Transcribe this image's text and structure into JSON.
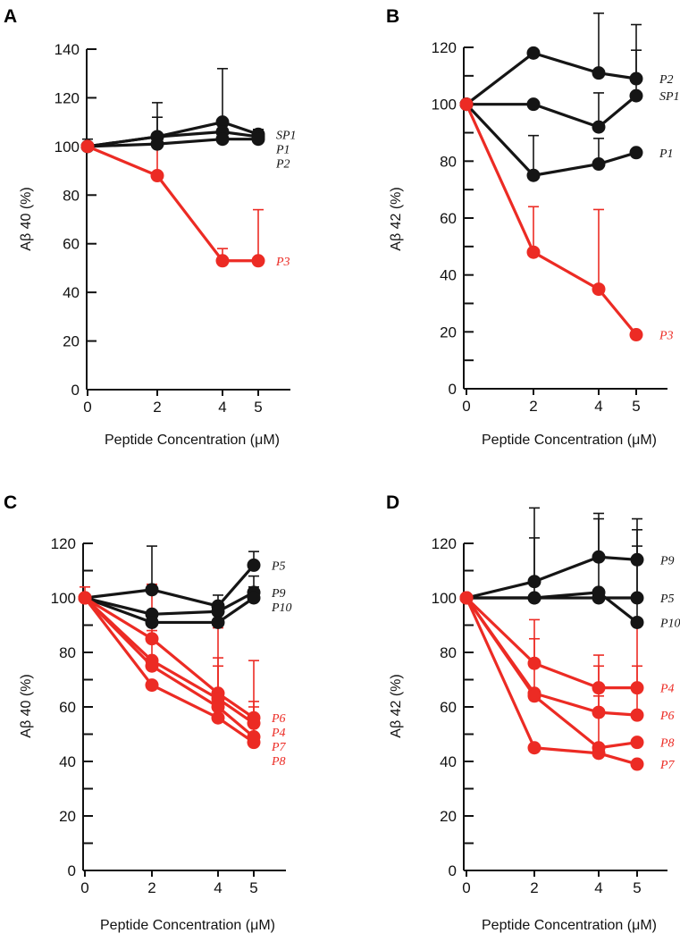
{
  "colors": {
    "black": "#151515",
    "red": "#ec2b24"
  },
  "chart_data": [
    {
      "type": "line",
      "panel": "A",
      "xlabel": "Peptide Concentration (μM)",
      "ylabel": "Aβ 40 (%)",
      "x": [
        0,
        2,
        4,
        5
      ],
      "xticks": [
        "0",
        "2",
        "4",
        "5"
      ],
      "ylim": [
        0,
        140
      ],
      "yticks": [
        "0",
        "20",
        "40",
        "60",
        "80",
        "100",
        "120",
        "140"
      ],
      "minor_step": 20,
      "series": [
        {
          "name": "SP1",
          "color": "black",
          "values": [
            100,
            104,
            110,
            105
          ],
          "err_upper": [
            103,
            118,
            132,
            107
          ]
        },
        {
          "name": "P1",
          "color": "black",
          "values": [
            100,
            104,
            106,
            104
          ],
          "err_upper": [
            null,
            112,
            null,
            null
          ]
        },
        {
          "name": "P2",
          "color": "black",
          "values": [
            100,
            101,
            103,
            103
          ],
          "err_upper": [
            null,
            null,
            null,
            null
          ]
        },
        {
          "name": "P3",
          "color": "red",
          "values": [
            100,
            88,
            53,
            53
          ],
          "err_upper": [
            null,
            105,
            58,
            74
          ]
        }
      ]
    },
    {
      "type": "line",
      "panel": "B",
      "xlabel": "Peptide Concentration (μM)",
      "ylabel": "Aβ 42 (%)",
      "x": [
        0,
        2,
        4,
        5
      ],
      "xticks": [
        "0",
        "2",
        "4",
        "5"
      ],
      "ylim": [
        0,
        120
      ],
      "yticks": [
        "0",
        "20",
        "40",
        "60",
        "80",
        "100",
        "120"
      ],
      "minor_step": 10,
      "series": [
        {
          "name": "P2",
          "color": "black",
          "values": [
            100,
            118,
            111,
            109
          ],
          "err_upper": [
            null,
            null,
            132,
            128
          ]
        },
        {
          "name": "SP1",
          "color": "black",
          "values": [
            100,
            100,
            92,
            103
          ],
          "err_upper": [
            null,
            null,
            104,
            119
          ]
        },
        {
          "name": "P1",
          "color": "black",
          "values": [
            100,
            75,
            79,
            83
          ],
          "err_upper": [
            null,
            89,
            88,
            null
          ]
        },
        {
          "name": "P3",
          "color": "red",
          "values": [
            100,
            48,
            35,
            19
          ],
          "err_upper": [
            null,
            64,
            63,
            null
          ]
        }
      ]
    },
    {
      "type": "line",
      "panel": "C",
      "xlabel": "Peptide Concentration (μM)",
      "ylabel": "Aβ 40 (%)",
      "x": [
        0,
        2,
        4,
        5
      ],
      "xticks": [
        "0",
        "2",
        "4",
        "5"
      ],
      "ylim": [
        0,
        120
      ],
      "yticks": [
        "0",
        "20",
        "40",
        "60",
        "80",
        "100",
        "120"
      ],
      "minor_step": 10,
      "series": [
        {
          "name": "P5",
          "color": "black",
          "values": [
            100,
            103,
            97,
            112
          ],
          "err_upper": [
            null,
            119,
            101,
            117
          ]
        },
        {
          "name": "P9",
          "color": "black",
          "values": [
            100,
            94,
            95,
            102
          ],
          "err_upper": [
            null,
            null,
            null,
            108
          ]
        },
        {
          "name": "P10",
          "color": "black",
          "values": [
            100,
            91,
            91,
            100
          ],
          "err_upper": [
            null,
            null,
            null,
            104
          ]
        },
        {
          "name": "P6",
          "color": "red",
          "values": [
            100,
            85,
            65,
            56
          ],
          "err_upper": [
            104,
            105,
            89,
            77
          ]
        },
        {
          "name": "P4",
          "color": "red",
          "values": [
            100,
            77,
            63,
            54
          ],
          "err_upper": [
            null,
            88,
            78,
            62
          ]
        },
        {
          "name": "P7",
          "color": "red",
          "values": [
            100,
            75,
            60,
            49
          ],
          "err_upper": [
            null,
            null,
            75,
            60
          ]
        },
        {
          "name": "P8",
          "color": "red",
          "values": [
            100,
            68,
            56,
            47
          ],
          "err_upper": [
            null,
            null,
            null,
            null
          ]
        }
      ]
    },
    {
      "type": "line",
      "panel": "D",
      "xlabel": "Peptide Concentration (μM)",
      "ylabel": "Aβ 42 (%)",
      "x": [
        0,
        2,
        4,
        5
      ],
      "xticks": [
        "0",
        "2",
        "4",
        "5"
      ],
      "ylim": [
        0,
        120
      ],
      "yticks": [
        "0",
        "20",
        "40",
        "60",
        "80",
        "100",
        "120"
      ],
      "minor_step": 10,
      "series": [
        {
          "name": "P9",
          "color": "black",
          "values": [
            100,
            106,
            115,
            114
          ],
          "err_upper": [
            null,
            133,
            131,
            129
          ]
        },
        {
          "name": "P5",
          "color": "black",
          "values": [
            100,
            100,
            100,
            100
          ],
          "err_upper": [
            null,
            122,
            129,
            125
          ]
        },
        {
          "name": "P10",
          "color": "black",
          "values": [
            100,
            100,
            102,
            91
          ],
          "err_upper": [
            null,
            null,
            null,
            119
          ]
        },
        {
          "name": "P4",
          "color": "red",
          "values": [
            100,
            76,
            67,
            67
          ],
          "err_upper": [
            null,
            92,
            79,
            90
          ]
        },
        {
          "name": "P6",
          "color": "red",
          "values": [
            100,
            65,
            58,
            57
          ],
          "err_upper": [
            null,
            85,
            75,
            75
          ]
        },
        {
          "name": "P8",
          "color": "red",
          "values": [
            100,
            64,
            45,
            47
          ],
          "err_upper": [
            null,
            null,
            64,
            null
          ]
        },
        {
          "name": "P7",
          "color": "red",
          "values": [
            100,
            45,
            43,
            39
          ],
          "err_upper": [
            null,
            null,
            null,
            null
          ]
        }
      ]
    }
  ]
}
